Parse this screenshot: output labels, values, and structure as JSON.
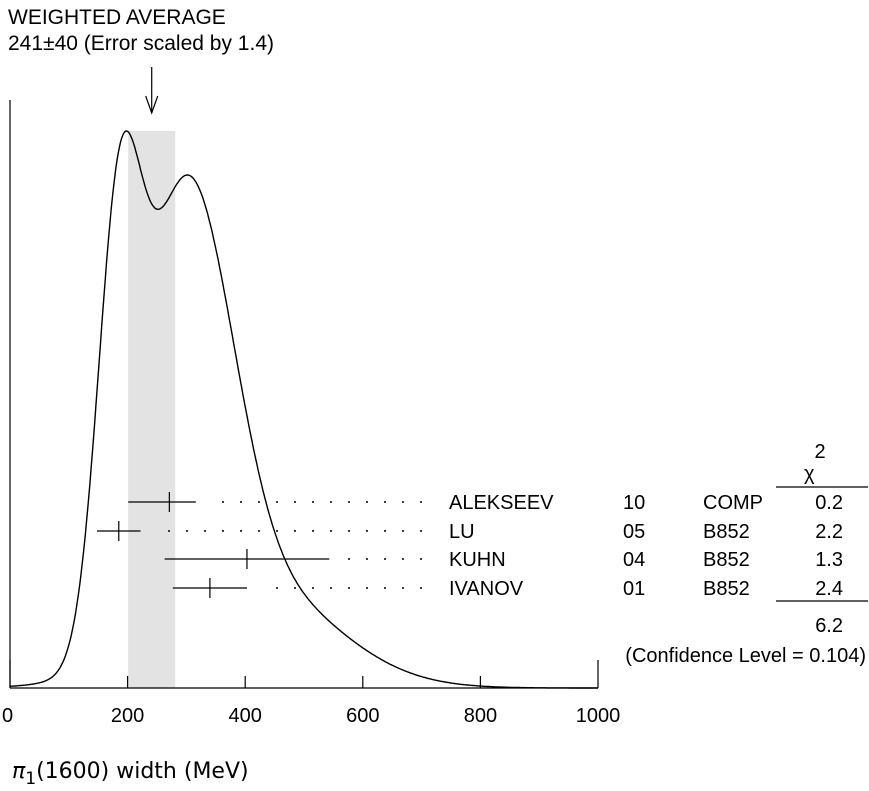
{
  "header": {
    "line1": "WEIGHTED AVERAGE",
    "line2": "241±40 (Error scaled by 1.4)"
  },
  "chart_data": {
    "type": "ideogram",
    "xlabel_symbol": "π",
    "xlabel_sub": "1",
    "xlabel_rest": "(1600) width (MeV)",
    "xlim": [
      0,
      1000
    ],
    "x_ticks": [
      0,
      200,
      400,
      600,
      800,
      1000
    ],
    "tick_labels": [
      "0",
      "200",
      "400",
      "600",
      "800",
      "1000"
    ],
    "weighted_average": {
      "value": 241,
      "error": 40,
      "band": [
        201,
        281
      ]
    },
    "chi2_header": "χ",
    "chi2_power": "2",
    "measurements": [
      {
        "author": "ALEKSEEV",
        "year": "10",
        "tech": "COMP",
        "chi2": "0.2",
        "value": 271,
        "low": 201,
        "high": 316
      },
      {
        "author": "LU",
        "year": "05",
        "tech": "B852",
        "chi2": "2.2",
        "value": 185,
        "low": 148,
        "high": 222
      },
      {
        "author": "KUHN",
        "year": "04",
        "tech": "B852",
        "chi2": "1.3",
        "value": 403,
        "low": 263,
        "high": 543
      },
      {
        "author": "IVANOV",
        "year": "01",
        "tech": "B852",
        "chi2": "2.4",
        "value": 340,
        "low": 277,
        "high": 403
      }
    ],
    "chi2_total": "6.2",
    "confidence_level": "(Confidence Level = 0.104)"
  }
}
